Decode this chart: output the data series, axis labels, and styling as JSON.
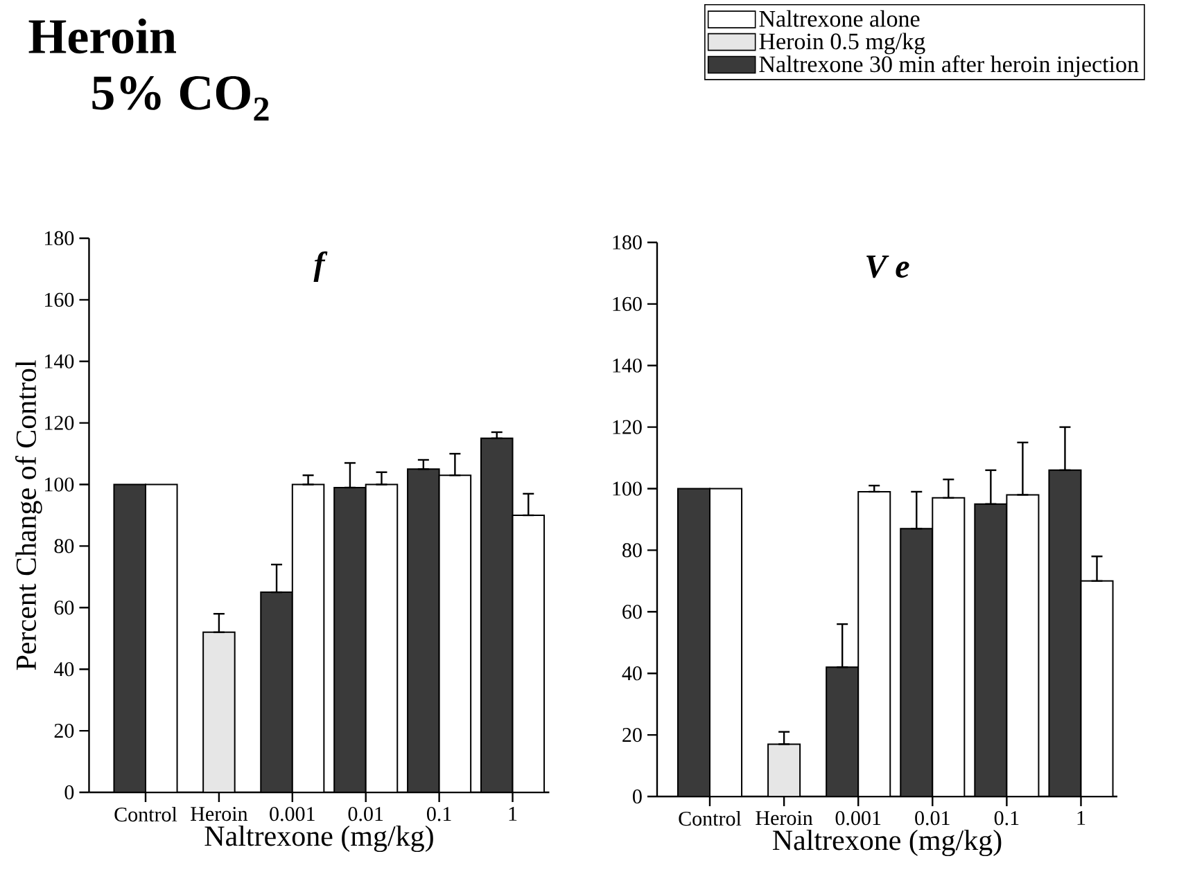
{
  "chart_data": [
    {
      "type": "bar",
      "title": "f",
      "ylabel": "Percent Change of Control",
      "xlabel": "Naltrexone (mg/kg)",
      "annotations": [
        "Heroin",
        "5% CO$_{2}$"
      ],
      "categories": [
        "Control",
        "Heroin",
        "0.001",
        "0.01",
        "0.1",
        "1"
      ],
      "ylim": [
        0,
        180
      ],
      "yticks": [
        0,
        20,
        40,
        60,
        80,
        100,
        120,
        140,
        160,
        180
      ],
      "grid": false,
      "series": [
        {
          "color": "#3a3a3a",
          "values": [
            100,
            null,
            65,
            99,
            105,
            115
          ],
          "errors": [
            null,
            null,
            [
              65,
              74
            ],
            [
              99,
              107
            ],
            [
              105,
              108
            ],
            [
              115,
              117
            ]
          ]
        },
        {
          "color": "#e6e6e6",
          "values": [
            null,
            52,
            null,
            null,
            null,
            null
          ],
          "errors": [
            null,
            [
              52,
              58
            ],
            null,
            null,
            null,
            null
          ]
        },
        {
          "color": "#ffffff",
          "values": [
            100,
            null,
            100,
            100,
            103,
            90
          ],
          "errors": [
            null,
            null,
            [
              100,
              103
            ],
            [
              100,
              104
            ],
            [
              103,
              110
            ],
            [
              90,
              97
            ]
          ]
        }
      ]
    },
    {
      "type": "bar",
      "title": "V e",
      "xlabel": "Naltrexone (mg/kg)",
      "legend": "top right",
      "categories": [
        "Control",
        "Heroin",
        "0.001",
        "0.01",
        "0.1",
        "1"
      ],
      "ylim": [
        0,
        180
      ],
      "yticks": [
        0,
        20,
        40,
        60,
        80,
        100,
        120,
        140,
        160,
        180
      ],
      "grid": false,
      "series": [
        {
          "name": "Naltrexone 30 min after heroin injection",
          "color": "#3a3a3a",
          "values": [
            100,
            null,
            42,
            87,
            95,
            106
          ],
          "errors": [
            null,
            null,
            [
              42,
              56
            ],
            [
              87,
              99
            ],
            [
              95,
              106
            ],
            [
              106,
              120
            ]
          ]
        },
        {
          "name": "Heroin 0.5 mg/kg",
          "color": "#e6e6e6",
          "values": [
            null,
            17,
            null,
            null,
            null,
            null
          ],
          "errors": [
            null,
            [
              17,
              21
            ],
            null,
            null,
            null,
            null
          ]
        },
        {
          "name": "Naltrexone alone",
          "color": "#ffffff",
          "values": [
            100,
            null,
            99,
            97,
            98,
            70
          ],
          "errors": [
            null,
            null,
            [
              99,
              101
            ],
            [
              97,
              103
            ],
            [
              98,
              115
            ],
            [
              70,
              78
            ]
          ]
        }
      ]
    }
  ]
}
